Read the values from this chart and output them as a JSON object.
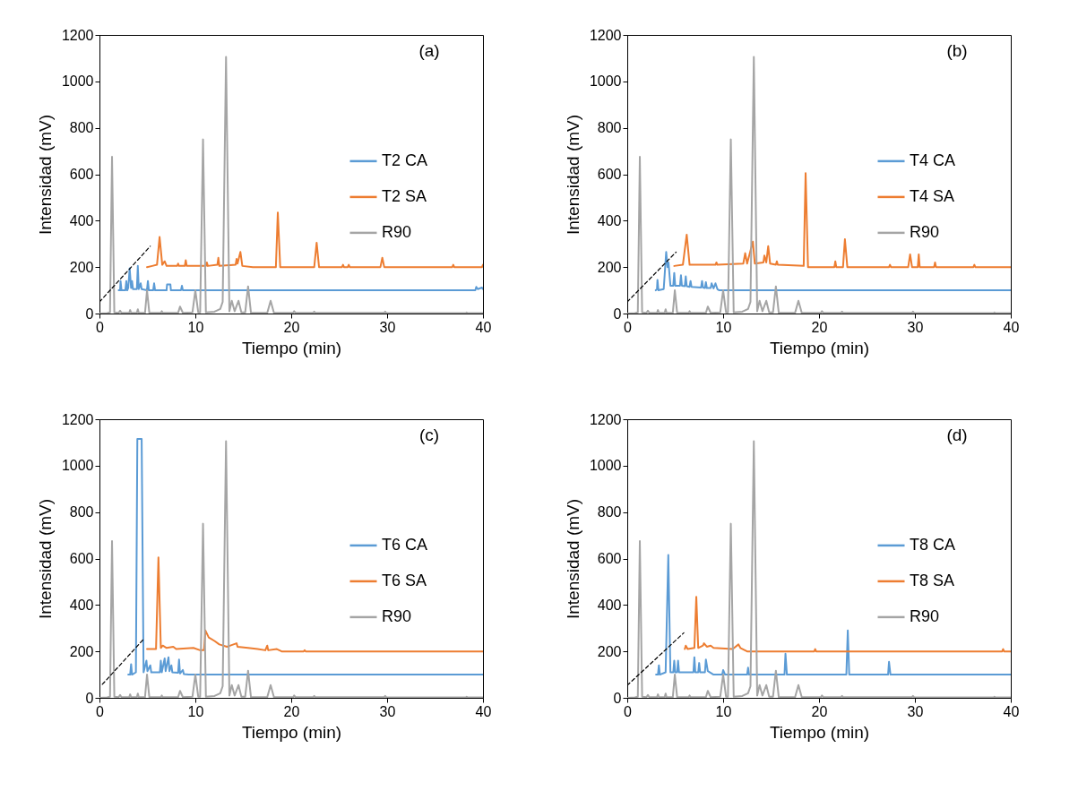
{
  "chart_data": [
    {
      "type": "line",
      "xlabel": "Tiempo (min)",
      "ylabel": "Intensidad (mV)",
      "annotations": [
        "(a)"
      ],
      "xlim": [
        0,
        40
      ],
      "xticks": [
        0,
        10,
        20,
        30,
        40
      ],
      "ylim": [
        0,
        1200
      ],
      "yticks": [
        0,
        200,
        400,
        600,
        800,
        1000,
        1200
      ],
      "grid": false,
      "legend": "right",
      "marker": "none",
      "series": [
        {
          "name": "T2 CA",
          "color": "#5b9bd5",
          "x": [
            2.0,
            2.15,
            2.2,
            2.3,
            2.7,
            2.8,
            2.9,
            3.0,
            3.15,
            3.3,
            3.4,
            3.5,
            3.9,
            4.0,
            4.1,
            4.3,
            4.4,
            4.95,
            5.05,
            5.15,
            5.6,
            5.7,
            5.8,
            7.0,
            7.05,
            7.4,
            7.45,
            8.5,
            8.6,
            8.7,
            39.2,
            39.3,
            39.45,
            39.9,
            40
          ],
          "values": [
            100,
            100,
            140,
            100,
            100,
            140,
            100,
            110,
            195,
            110,
            140,
            105,
            105,
            205,
            105,
            130,
            105,
            100,
            140,
            100,
            100,
            130,
            100,
            100,
            125,
            125,
            100,
            100,
            120,
            100,
            100,
            115,
            105,
            112,
            105
          ]
        },
        {
          "name": "T2 SA",
          "color": "#ed7d31",
          "x": [
            4.96,
            5.5,
            6.0,
            6.27,
            6.55,
            6.8,
            7.0,
            8.1,
            8.2,
            8.3,
            8.9,
            9.0,
            9.1,
            11.1,
            11.2,
            11.3,
            12.3,
            12.4,
            12.5,
            14.2,
            14.3,
            14.4,
            14.7,
            14.9,
            16.0,
            18.4,
            18.6,
            18.85,
            22.4,
            22.65,
            22.9,
            25.3,
            25.4,
            25.5,
            25.9,
            26.0,
            26.1,
            29.3,
            29.5,
            29.7,
            36.8,
            36.9,
            37.0,
            39.9,
            40
          ],
          "values": [
            200,
            205,
            210,
            330,
            210,
            225,
            205,
            205,
            215,
            205,
            205,
            230,
            205,
            205,
            220,
            205,
            210,
            240,
            205,
            210,
            235,
            215,
            265,
            205,
            200,
            200,
            435,
            200,
            200,
            305,
            200,
            200,
            210,
            200,
            200,
            210,
            200,
            200,
            240,
            200,
            200,
            210,
            200,
            200,
            210
          ]
        },
        {
          "name": "R90",
          "color": "#a5a5a5",
          "x": [
            0,
            0.8,
            1.1,
            1.31,
            1.55,
            2.0,
            2.15,
            2.3,
            3.1,
            3.2,
            3.3,
            3.9,
            4.0,
            4.1,
            4.75,
            4.96,
            5.2,
            6.4,
            6.5,
            6.6,
            8.2,
            8.4,
            8.7,
            9.7,
            10.0,
            10.3,
            10.5,
            10.8,
            11.1,
            12.0,
            12.6,
            12.85,
            13.2,
            13.55,
            13.8,
            14.1,
            14.5,
            14.8,
            15.2,
            15.5,
            15.8,
            17.5,
            17.85,
            18.2,
            20.2,
            20.3,
            20.45,
            22.3,
            22.4,
            22.5,
            29.7,
            29.8,
            29.9,
            38.2,
            38.3,
            38.4,
            40
          ],
          "values": [
            0,
            2,
            5,
            675,
            5,
            3,
            12,
            3,
            3,
            15,
            3,
            3,
            18,
            3,
            3,
            100,
            3,
            3,
            10,
            3,
            3,
            30,
            3,
            5,
            100,
            5,
            5,
            750,
            5,
            8,
            20,
            50,
            1105,
            10,
            55,
            10,
            55,
            5,
            5,
            117,
            3,
            3,
            55,
            3,
            3,
            10,
            3,
            3,
            8,
            3,
            3,
            8,
            3,
            2,
            5,
            2,
            2
          ]
        },
        {
          "color": "#000000",
          "line_style": "dashed",
          "x": [
            0,
            5.3
          ],
          "values": [
            50,
            290
          ]
        }
      ]
    },
    {
      "type": "line",
      "xlabel": "Tiempo (min)",
      "ylabel": "Intensidad (mV)",
      "annotations": [
        "(b)"
      ],
      "xlim": [
        0,
        40
      ],
      "xticks": [
        0,
        10,
        20,
        30,
        40
      ],
      "ylim": [
        0,
        1200
      ],
      "yticks": [
        0,
        200,
        400,
        600,
        800,
        1000,
        1200
      ],
      "grid": false,
      "legend": "right",
      "marker": "none",
      "series": [
        {
          "name": "T4 CA",
          "color": "#5b9bd5",
          "x": [
            2.97,
            3.1,
            3.15,
            3.25,
            3.8,
            4.06,
            4.2,
            4.3,
            4.5,
            4.8,
            4.9,
            5.0,
            5.5,
            5.6,
            5.7,
            6.0,
            6.1,
            6.2,
            6.5,
            6.6,
            6.7,
            7.7,
            7.8,
            7.9,
            8.1,
            8.2,
            8.3,
            8.7,
            8.8,
            9.0,
            9.2,
            9.4,
            9.6,
            40
          ],
          "values": [
            100,
            105,
            145,
            100,
            105,
            265,
            200,
            220,
            120,
            120,
            175,
            120,
            120,
            165,
            120,
            118,
            160,
            118,
            115,
            140,
            115,
            112,
            140,
            112,
            110,
            135,
            110,
            110,
            130,
            108,
            130,
            105,
            100,
            100
          ]
        },
        {
          "name": "T4 SA",
          "color": "#ed7d31",
          "x": [
            4.9,
            5.8,
            6.2,
            6.5,
            9.2,
            9.3,
            9.4,
            12.1,
            12.3,
            12.5,
            13.1,
            13.3,
            14.2,
            14.3,
            14.5,
            14.7,
            14.9,
            15.5,
            15.6,
            15.7,
            18.4,
            18.6,
            18.85,
            21.6,
            21.7,
            21.8,
            22.5,
            22.7,
            22.95,
            27.3,
            27.4,
            27.5,
            29.3,
            29.5,
            29.7,
            30.3,
            30.4,
            30.5,
            32.0,
            32.1,
            32.2,
            36.1,
            36.2,
            36.3,
            40
          ],
          "values": [
            205,
            210,
            340,
            210,
            210,
            220,
            210,
            215,
            260,
            215,
            310,
            215,
            220,
            250,
            220,
            290,
            215,
            210,
            225,
            210,
            205,
            605,
            200,
            200,
            225,
            200,
            200,
            320,
            200,
            200,
            210,
            200,
            200,
            255,
            200,
            200,
            255,
            200,
            200,
            220,
            200,
            200,
            210,
            200,
            200
          ]
        },
        {
          "name": "R90",
          "color": "#a5a5a5",
          "x": [
            0,
            0.8,
            1.1,
            1.31,
            1.55,
            2.0,
            2.15,
            2.3,
            3.1,
            3.2,
            3.3,
            3.9,
            4.0,
            4.1,
            4.75,
            4.96,
            5.2,
            6.4,
            6.5,
            6.6,
            8.2,
            8.4,
            8.7,
            9.7,
            10.0,
            10.3,
            10.5,
            10.8,
            11.1,
            12.0,
            12.6,
            12.85,
            13.2,
            13.55,
            13.8,
            14.1,
            14.5,
            14.8,
            15.2,
            15.5,
            15.8,
            17.5,
            17.85,
            18.2,
            20.2,
            20.3,
            20.45,
            22.3,
            22.4,
            22.5,
            29.7,
            29.8,
            29.9,
            38.2,
            38.3,
            38.4,
            40
          ],
          "values": [
            0,
            2,
            5,
            675,
            5,
            3,
            12,
            3,
            3,
            15,
            3,
            3,
            18,
            3,
            3,
            100,
            3,
            3,
            10,
            3,
            3,
            30,
            3,
            5,
            100,
            5,
            5,
            750,
            5,
            8,
            20,
            50,
            1105,
            10,
            55,
            10,
            55,
            5,
            5,
            117,
            3,
            3,
            55,
            3,
            3,
            10,
            3,
            3,
            8,
            3,
            3,
            8,
            3,
            2,
            5,
            2,
            2
          ]
        },
        {
          "color": "#000000",
          "line_style": "dashed",
          "x": [
            0,
            5.1
          ],
          "values": [
            50,
            265
          ]
        }
      ]
    },
    {
      "type": "line",
      "xlabel": "Tiempo (min)",
      "ylabel": "Intensidad (mV)",
      "annotations": [
        "(c)"
      ],
      "xlim": [
        0,
        40
      ],
      "xticks": [
        0,
        10,
        20,
        30,
        40
      ],
      "ylim": [
        0,
        1200
      ],
      "yticks": [
        0,
        200,
        400,
        600,
        800,
        1000,
        1200
      ],
      "grid": false,
      "legend": "right",
      "marker": "none",
      "series": [
        {
          "name": "T6 CA",
          "color": "#5b9bd5",
          "x": [
            3.0,
            3.2,
            3.3,
            3.4,
            3.8,
            3.95,
            4.4,
            4.6,
            4.9,
            5.0,
            5.3,
            5.4,
            6.3,
            6.4,
            6.5,
            6.8,
            6.9,
            7.2,
            7.3,
            7.5,
            7.6,
            8.2,
            8.3,
            8.4,
            8.7,
            8.8,
            9.3,
            40
          ],
          "values": [
            100,
            100,
            145,
            100,
            110,
            1115,
            1115,
            110,
            160,
            115,
            140,
            110,
            110,
            160,
            110,
            170,
            115,
            175,
            115,
            140,
            110,
            108,
            165,
            105,
            120,
            102,
            100,
            100
          ]
        },
        {
          "name": "T6 SA",
          "color": "#ed7d31",
          "x": [
            4.96,
            5.9,
            6.15,
            6.4,
            6.6,
            7.0,
            7.7,
            8.0,
            9.8,
            10.5,
            10.9,
            11.05,
            11.4,
            12.0,
            12.5,
            13.3,
            14.3,
            14.4,
            15.5,
            16.5,
            17.3,
            17.5,
            17.6,
            18.5,
            19.0,
            21.3,
            21.4,
            21.5,
            40
          ],
          "values": [
            210,
            210,
            605,
            215,
            225,
            215,
            220,
            210,
            215,
            205,
            205,
            290,
            260,
            245,
            230,
            220,
            235,
            220,
            215,
            210,
            205,
            225,
            205,
            210,
            200,
            200,
            205,
            200,
            200
          ]
        },
        {
          "name": "R90",
          "color": "#a5a5a5",
          "x": [
            0,
            0.8,
            1.1,
            1.31,
            1.55,
            2.0,
            2.15,
            2.3,
            3.1,
            3.2,
            3.3,
            3.9,
            4.0,
            4.1,
            4.75,
            4.96,
            5.2,
            6.4,
            6.5,
            6.6,
            8.2,
            8.4,
            8.7,
            9.7,
            10.0,
            10.3,
            10.5,
            10.8,
            11.1,
            12.0,
            12.6,
            12.85,
            13.2,
            13.55,
            13.8,
            14.1,
            14.5,
            14.8,
            15.2,
            15.5,
            15.8,
            17.5,
            17.85,
            18.2,
            20.2,
            20.3,
            20.45,
            22.3,
            22.4,
            22.5,
            29.7,
            29.8,
            29.9,
            38.2,
            38.3,
            38.4,
            40
          ],
          "values": [
            0,
            2,
            5,
            675,
            5,
            3,
            12,
            3,
            3,
            15,
            3,
            3,
            18,
            3,
            3,
            100,
            3,
            3,
            10,
            3,
            3,
            30,
            3,
            5,
            100,
            5,
            5,
            750,
            5,
            8,
            20,
            50,
            1105,
            10,
            55,
            10,
            55,
            5,
            5,
            117,
            3,
            3,
            55,
            3,
            3,
            10,
            3,
            3,
            8,
            3,
            3,
            8,
            3,
            2,
            5,
            2,
            2
          ]
        },
        {
          "color": "#000000",
          "line_style": "dashed",
          "x": [
            0.3,
            4.7
          ],
          "values": [
            58,
            257
          ]
        }
      ]
    },
    {
      "type": "line",
      "xlabel": "Tiempo (min)",
      "ylabel": "Intensidad (mV)",
      "annotations": [
        "(d)"
      ],
      "xlim": [
        0,
        40
      ],
      "xticks": [
        0,
        10,
        20,
        30,
        40
      ],
      "ylim": [
        0,
        1200
      ],
      "yticks": [
        0,
        200,
        400,
        600,
        800,
        1000,
        1200
      ],
      "grid": false,
      "legend": "right",
      "marker": "none",
      "series": [
        {
          "name": "T8 CA",
          "color": "#5b9bd5",
          "x": [
            3.0,
            3.2,
            3.3,
            3.4,
            4.0,
            4.28,
            4.5,
            4.8,
            4.9,
            5.0,
            5.2,
            5.3,
            5.4,
            6.9,
            7.0,
            7.1,
            7.4,
            7.5,
            7.6,
            8.1,
            8.2,
            8.4,
            9.0,
            9.9,
            10.0,
            10.2,
            12.5,
            12.6,
            12.7,
            16.4,
            16.5,
            16.65,
            22.85,
            23.0,
            23.15,
            27.2,
            27.3,
            27.45,
            40
          ],
          "values": [
            100,
            100,
            140,
            100,
            110,
            615,
            110,
            110,
            160,
            110,
            110,
            160,
            110,
            110,
            175,
            110,
            110,
            150,
            110,
            110,
            165,
            115,
            100,
            100,
            120,
            100,
            100,
            130,
            100,
            100,
            190,
            100,
            100,
            290,
            100,
            100,
            155,
            100,
            100
          ]
        },
        {
          "name": "T8 SA",
          "color": "#ed7d31",
          "x": [
            6.0,
            6.1,
            6.3,
            7.0,
            7.2,
            7.4,
            7.9,
            8.0,
            8.3,
            8.7,
            9.0,
            11.0,
            11.6,
            11.8,
            12.5,
            19.5,
            19.6,
            19.7,
            39.1,
            39.2,
            39.3,
            40
          ],
          "values": [
            210,
            225,
            210,
            215,
            435,
            215,
            225,
            235,
            220,
            225,
            215,
            210,
            230,
            215,
            200,
            200,
            210,
            200,
            200,
            210,
            200,
            200
          ]
        },
        {
          "name": "R90",
          "color": "#a5a5a5",
          "x": [
            0,
            0.8,
            1.1,
            1.31,
            1.55,
            2.0,
            2.15,
            2.3,
            3.1,
            3.2,
            3.3,
            3.9,
            4.0,
            4.1,
            4.75,
            4.96,
            5.2,
            6.4,
            6.5,
            6.6,
            8.2,
            8.4,
            8.7,
            9.7,
            10.0,
            10.3,
            10.5,
            10.8,
            11.1,
            12.0,
            12.6,
            12.85,
            13.2,
            13.55,
            13.8,
            14.1,
            14.5,
            14.8,
            15.2,
            15.5,
            15.8,
            17.5,
            17.85,
            18.2,
            20.2,
            20.3,
            20.45,
            22.3,
            22.4,
            22.5,
            29.7,
            29.8,
            29.9,
            38.2,
            38.3,
            38.4,
            40
          ],
          "values": [
            0,
            2,
            5,
            675,
            5,
            3,
            12,
            3,
            3,
            15,
            3,
            3,
            18,
            3,
            3,
            100,
            3,
            3,
            10,
            3,
            3,
            30,
            3,
            5,
            100,
            5,
            5,
            750,
            5,
            8,
            20,
            50,
            1105,
            10,
            55,
            10,
            55,
            5,
            5,
            117,
            3,
            3,
            55,
            3,
            3,
            10,
            3,
            3,
            8,
            3,
            3,
            8,
            3,
            2,
            5,
            2,
            2
          ]
        },
        {
          "color": "#000000",
          "line_style": "dashed",
          "x": [
            0,
            5.9
          ],
          "values": [
            54,
            280
          ]
        }
      ]
    }
  ]
}
